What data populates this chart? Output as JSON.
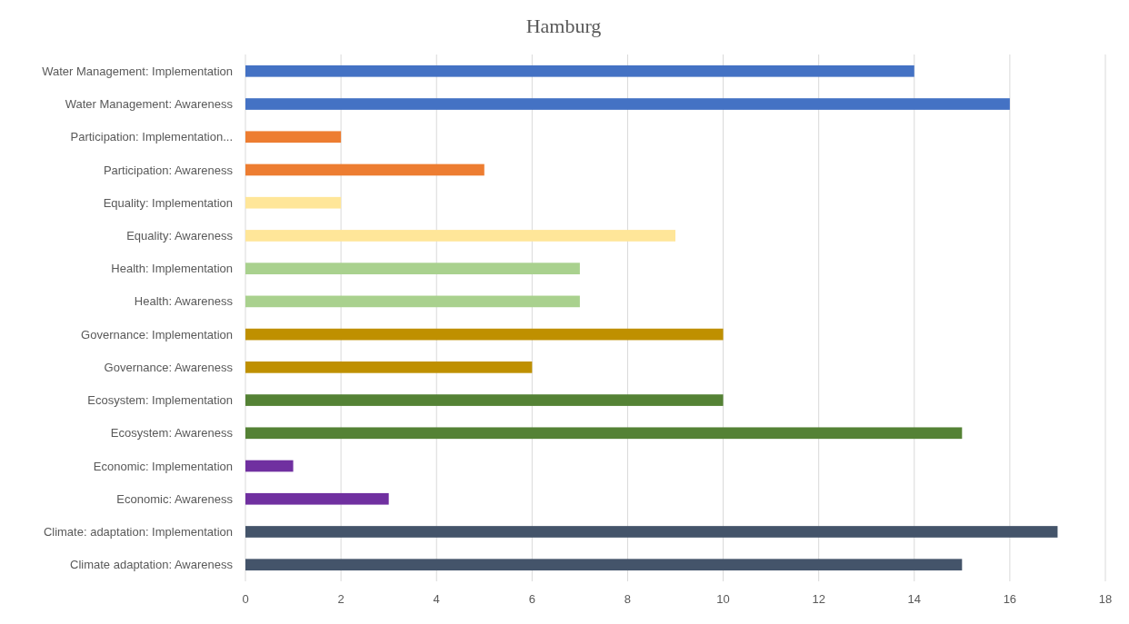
{
  "chart_data": {
    "type": "bar",
    "orientation": "horizontal",
    "title": "Hamburg",
    "categories": [
      "Water Management: Implementation",
      "Water Management: Awareness",
      "Participation: Implementation...",
      "Participation: Awareness",
      "Equality: Implementation",
      "Equality: Awareness",
      "Health: Implementation",
      "Health: Awareness",
      "Governance: Implementation",
      "Governance: Awareness",
      "Ecosystem: Implementation",
      "Ecosystem: Awareness",
      "Economic: Implementation",
      "Economic: Awareness",
      "Climate: adaptation: Implementation",
      "Climate adaptation: Awareness"
    ],
    "values": [
      14,
      16,
      2,
      5,
      2,
      9,
      7,
      7,
      10,
      6,
      10,
      15,
      1,
      3,
      17,
      15
    ],
    "colors": [
      "#4472c4",
      "#4472c4",
      "#ed7d31",
      "#ed7d31",
      "#ffe699",
      "#ffe699",
      "#a9d18e",
      "#a9d18e",
      "#bf9000",
      "#bf9000",
      "#548235",
      "#548235",
      "#7030a0",
      "#7030a0",
      "#44546a",
      "#44546a"
    ],
    "xlim": [
      0,
      18
    ],
    "xticks": [
      0,
      2,
      4,
      6,
      8,
      10,
      12,
      14,
      16,
      18
    ],
    "grid": "x"
  }
}
